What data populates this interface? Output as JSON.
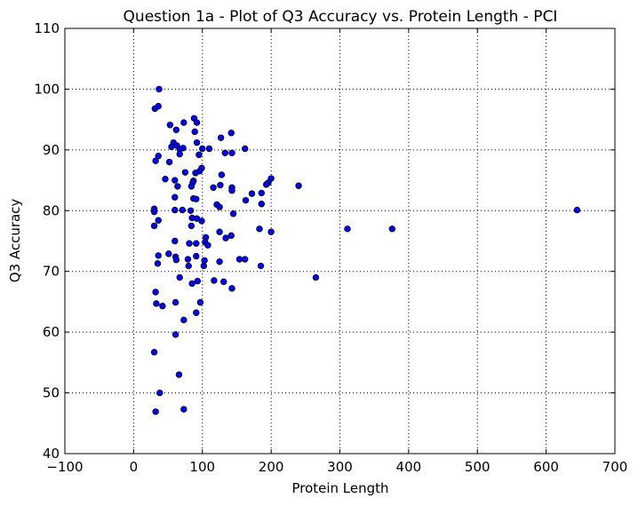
{
  "chart_data": {
    "type": "scatter",
    "title": "Question 1a - Plot of Q3 Accuracy vs. Protein Length - PCI",
    "xlabel": "Protein Length",
    "ylabel": "Q3 Accuracy",
    "xlim": [
      -100,
      700
    ],
    "ylim": [
      40,
      110
    ],
    "xticks": [
      -100,
      0,
      100,
      200,
      300,
      400,
      500,
      600,
      700
    ],
    "yticks": [
      40,
      50,
      60,
      70,
      80,
      90,
      100,
      110
    ],
    "xtick_labels": [
      "−100",
      "0",
      "100",
      "200",
      "300",
      "400",
      "500",
      "600",
      "700"
    ],
    "ytick_labels": [
      "40",
      "50",
      "60",
      "70",
      "80",
      "90",
      "100",
      "110"
    ],
    "grid": true,
    "marker_color": "#0000ff",
    "points": [
      [
        37,
        100
      ],
      [
        31,
        96.8
      ],
      [
        36,
        97.2
      ],
      [
        88,
        95.2
      ],
      [
        92,
        94.5
      ],
      [
        53,
        94.1
      ],
      [
        73,
        94.5
      ],
      [
        62,
        93.3
      ],
      [
        142,
        92.8
      ],
      [
        89,
        93.0
      ],
      [
        127,
        92.0
      ],
      [
        58,
        91.2
      ],
      [
        92,
        91.2
      ],
      [
        55,
        90.5
      ],
      [
        63,
        90.7
      ],
      [
        67,
        90.1
      ],
      [
        72,
        90.3
      ],
      [
        100,
        90.2
      ],
      [
        110,
        90.2
      ],
      [
        162,
        90.2
      ],
      [
        36,
        89.0
      ],
      [
        67,
        89.3
      ],
      [
        95,
        89.2
      ],
      [
        133,
        89.5
      ],
      [
        143,
        89.5
      ],
      [
        32,
        88.2
      ],
      [
        52,
        88.0
      ],
      [
        99,
        87.0
      ],
      [
        96,
        86.5
      ],
      [
        75,
        86.3
      ],
      [
        90,
        86.2
      ],
      [
        128,
        85.9
      ],
      [
        46,
        85.2
      ],
      [
        60,
        85.0
      ],
      [
        87,
        84.9
      ],
      [
        86,
        84.6
      ],
      [
        200,
        85.3
      ],
      [
        196,
        84.6
      ],
      [
        193,
        84.3
      ],
      [
        64,
        84.0
      ],
      [
        84,
        84.0
      ],
      [
        116,
        83.8
      ],
      [
        126,
        84.2
      ],
      [
        143,
        83.8
      ],
      [
        240,
        84.1
      ],
      [
        143,
        83.3
      ],
      [
        87,
        82.0
      ],
      [
        60,
        82.2
      ],
      [
        91,
        81.9
      ],
      [
        172,
        82.8
      ],
      [
        186,
        82.9
      ],
      [
        163,
        81.7
      ],
      [
        121,
        81.0
      ],
      [
        125,
        80.6
      ],
      [
        186,
        81.1
      ],
      [
        30,
        80.3
      ],
      [
        30,
        79.8
      ],
      [
        60,
        80.1
      ],
      [
        71,
        80.1
      ],
      [
        83,
        80.0
      ],
      [
        145,
        79.5
      ],
      [
        645,
        80.1
      ],
      [
        36,
        78.4
      ],
      [
        85,
        78.8
      ],
      [
        92,
        78.7
      ],
      [
        99,
        78.3
      ],
      [
        84,
        77.5
      ],
      [
        30,
        77.5
      ],
      [
        183,
        77.0
      ],
      [
        311,
        77.0
      ],
      [
        376,
        77.0
      ],
      [
        200,
        76.5
      ],
      [
        125,
        76.5
      ],
      [
        142,
        75.9
      ],
      [
        105,
        75.6
      ],
      [
        134,
        75.5
      ],
      [
        104,
        74.8
      ],
      [
        60,
        75.0
      ],
      [
        81,
        74.6
      ],
      [
        91,
        74.6
      ],
      [
        108,
        74.3
      ],
      [
        36,
        72.6
      ],
      [
        51,
        72.9
      ],
      [
        61,
        72.4
      ],
      [
        62,
        71.9
      ],
      [
        79,
        72.0
      ],
      [
        91,
        72.5
      ],
      [
        103,
        71.8
      ],
      [
        125,
        71.6
      ],
      [
        154,
        72.0
      ],
      [
        162,
        72.0
      ],
      [
        35,
        71.3
      ],
      [
        80,
        70.9
      ],
      [
        102,
        70.9
      ],
      [
        185,
        70.9
      ],
      [
        67,
        69.0
      ],
      [
        117,
        68.5
      ],
      [
        131,
        68.3
      ],
      [
        93,
        68.4
      ],
      [
        85,
        68.0
      ],
      [
        143,
        67.2
      ],
      [
        265,
        69.0
      ],
      [
        32,
        66.6
      ],
      [
        33,
        64.7
      ],
      [
        42,
        64.3
      ],
      [
        61,
        64.9
      ],
      [
        97,
        64.9
      ],
      [
        91,
        63.2
      ],
      [
        73,
        62.0
      ],
      [
        61,
        59.6
      ],
      [
        30,
        56.7
      ],
      [
        66,
        53.0
      ],
      [
        38,
        50.0
      ],
      [
        32,
        46.9
      ],
      [
        73,
        47.3
      ]
    ]
  }
}
